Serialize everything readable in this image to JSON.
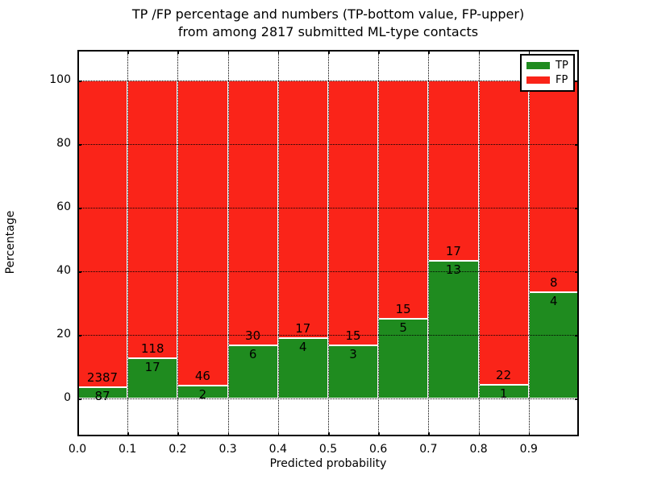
{
  "figure_title": {
    "line1": "TP /FP percentage and numbers (TP-bottom value, FP-upper)",
    "line2": "from among 2817 submitted ML-type contacts"
  },
  "chart_data": {
    "type": "bar",
    "stacked": true,
    "orientation": "vertical",
    "title": "TP /FP percentage and numbers (TP-bottom value, FP-upper) from among 2817 submitted ML-type contacts",
    "xlabel": "Predicted probability",
    "ylabel": "Percentage",
    "x_bin_edges": [
      0.0,
      0.1,
      0.2,
      0.3,
      0.4,
      0.5,
      0.6,
      0.7,
      0.8,
      0.9,
      1.0
    ],
    "xtick_labels": [
      "0.0",
      "0.1",
      "0.2",
      "0.3",
      "0.4",
      "0.5",
      "0.6",
      "0.7",
      "0.8",
      "0.9"
    ],
    "ytick_labels": [
      "0",
      "20",
      "40",
      "60",
      "80",
      "100"
    ],
    "ytick_values": [
      0,
      20,
      40,
      60,
      80,
      100
    ],
    "ylim_shown": [
      -12,
      110
    ],
    "bars_normalized_to": 100,
    "series": [
      {
        "name": "TP",
        "color": "#1f8b1f",
        "counts": [
          87,
          17,
          2,
          6,
          4,
          3,
          5,
          13,
          1,
          4
        ]
      },
      {
        "name": "FP",
        "color": "#fa2419",
        "counts": [
          2387,
          118,
          46,
          30,
          17,
          15,
          15,
          17,
          22,
          8
        ]
      }
    ],
    "tp_percent_of_bin": [
      3.5,
      12.6,
      4.2,
      16.7,
      19.0,
      16.7,
      25.0,
      43.3,
      4.3,
      33.3
    ],
    "total_contacts": 2817,
    "legend": {
      "entries": [
        "TP",
        "FP"
      ],
      "position": "upper right"
    },
    "grid": "dotted black, horizontal and vertical",
    "bar_edge_color": "#ffffff"
  }
}
